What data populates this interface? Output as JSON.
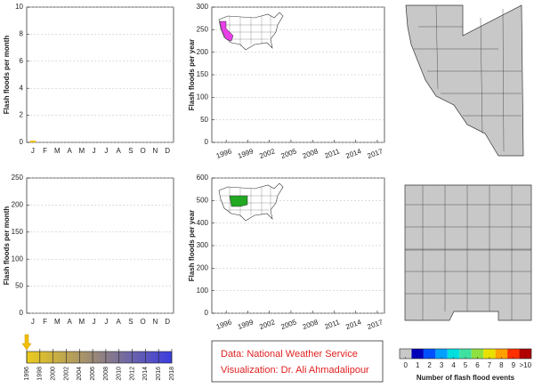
{
  "chart_data": [
    {
      "type": "line",
      "ylabel": "Flash floods per month",
      "categories": [
        "J",
        "F",
        "M",
        "A",
        "M",
        "J",
        "J",
        "A",
        "S",
        "O",
        "N",
        "D"
      ],
      "ylim": [
        0,
        10
      ],
      "yticks": [
        0,
        2,
        4,
        6,
        8,
        10
      ],
      "grid": true,
      "series": [
        {
          "color": "#f0c000",
          "values": [
            0,
            null,
            null,
            null,
            null,
            null,
            null,
            null,
            null,
            null,
            null,
            null
          ]
        }
      ]
    },
    {
      "type": "line",
      "ylabel": "Flash floods per year",
      "xlim": [
        1994,
        2018
      ],
      "xticks": [
        1996,
        1999,
        2002,
        2005,
        2008,
        2011,
        2014,
        2017
      ],
      "ylim": [
        0,
        300
      ],
      "yticks": [
        0,
        50,
        100,
        150,
        200,
        250,
        300
      ],
      "grid": true,
      "highlight_color": "#e83ee8"
    },
    {
      "type": "line",
      "ylabel": "Flash floods per month",
      "categories": [
        "J",
        "F",
        "M",
        "A",
        "M",
        "J",
        "J",
        "A",
        "S",
        "O",
        "N",
        "D"
      ],
      "ylim": [
        0,
        250
      ],
      "yticks": [
        0,
        50,
        100,
        150,
        200,
        250
      ],
      "grid": true
    },
    {
      "type": "line",
      "ylabel": "Flash floods per year",
      "xlim": [
        1994,
        2018
      ],
      "xticks": [
        1996,
        1999,
        2002,
        2005,
        2008,
        2011,
        2014,
        2017
      ],
      "ylim": [
        0,
        600
      ],
      "yticks": [
        0,
        100,
        200,
        300,
        400,
        500,
        600
      ],
      "grid": true,
      "highlight_color": "#22a822"
    },
    {
      "type": "timeline",
      "xlim": [
        1996,
        2018
      ],
      "xticks": [
        1996,
        1998,
        2000,
        2002,
        2004,
        2006,
        2008,
        2010,
        2012,
        2014,
        2016,
        2018
      ],
      "marker": 1996,
      "colors": [
        "#eccb1c",
        "#3b3ce0"
      ]
    },
    {
      "type": "colorbar",
      "label": "Number of flash flood events",
      "lim": [
        0,
        11
      ],
      "ticks": [
        0,
        1,
        2,
        3,
        4,
        5,
        6,
        7,
        8,
        9,
        {
          "value": 10,
          "label": ">10"
        }
      ],
      "colors": [
        "#c8c8c8",
        "#0000b8",
        "#0050ff",
        "#00a0ff",
        "#00dede",
        "#40e0a0",
        "#8ee040",
        "#e8e000",
        "#ffa000",
        "#ff3000",
        "#b00000"
      ]
    }
  ],
  "credits": [
    "Data: National Weather Service",
    "Visualization: Dr. Ali Ahmadalipour"
  ]
}
